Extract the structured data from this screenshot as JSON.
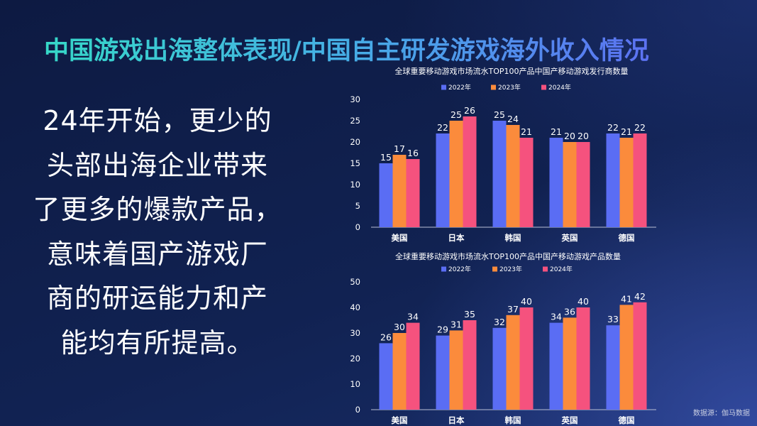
{
  "slide": {
    "title": "中国游戏出海整体表现/中国自主研发游戏海外收入情况",
    "body_lines": [
      "24年开始，更少的",
      "头部出海企业带来",
      "了更多的爆款产品，",
      "意味着国产游戏厂",
      "商的研运能力和产",
      "能均有所提高。"
    ],
    "source": "数据源：伽马数据"
  },
  "colors": {
    "background": "#0f1e48",
    "title_start": "#36d8c8",
    "title_mid": "#46aee6",
    "title_end": "#5c72f2",
    "text": "#ffffff"
  },
  "chart_data": [
    {
      "type": "bar",
      "title": "全球重要移动游戏市场流水TOP100产品中国产移动游戏发行商数量",
      "categories": [
        "美国",
        "日本",
        "韩国",
        "英国",
        "德国"
      ],
      "series": [
        {
          "name": "2022年",
          "color": "#5a6df4",
          "values": [
            15,
            22,
            25,
            21,
            22
          ]
        },
        {
          "name": "2023年",
          "color": "#fb8b3c",
          "values": [
            17,
            25,
            24,
            20,
            21
          ]
        },
        {
          "name": "2024年",
          "color": "#f5527e",
          "values": [
            16,
            26,
            21,
            20,
            22
          ]
        }
      ],
      "xlabel": "",
      "ylabel": "",
      "ylim": [
        0,
        30
      ],
      "yticks": [
        0,
        5,
        10,
        15,
        20,
        25,
        30
      ],
      "grid": false,
      "legend": "top-center"
    },
    {
      "type": "bar",
      "title": "全球重要移动游戏市场流水TOP100产品中国产移动游戏产品数量",
      "categories": [
        "美国",
        "日本",
        "韩国",
        "英国",
        "德国"
      ],
      "series": [
        {
          "name": "2022年",
          "color": "#5a6df4",
          "values": [
            26,
            29,
            32,
            34,
            33
          ]
        },
        {
          "name": "2023年",
          "color": "#fb8b3c",
          "values": [
            30,
            31,
            37,
            36,
            41
          ]
        },
        {
          "name": "2024年",
          "color": "#f5527e",
          "values": [
            34,
            35,
            40,
            40,
            42
          ]
        }
      ],
      "xlabel": "",
      "ylabel": "",
      "ylim": [
        0,
        50
      ],
      "yticks": [
        0,
        10,
        20,
        30,
        40,
        50
      ],
      "grid": false,
      "legend": "top-center"
    }
  ]
}
